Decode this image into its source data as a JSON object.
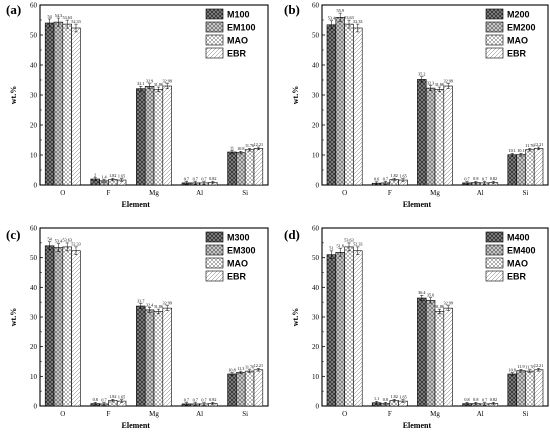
{
  "chart_data": [
    {
      "type": "bar",
      "panel_label": "(a)",
      "categories": [
        "O",
        "F",
        "Mg",
        "Al",
        "Si"
      ],
      "xlabel": "Element",
      "ylabel": "wt.%",
      "ylim": [
        0,
        60
      ],
      "yticks": [
        "0",
        "10",
        "20",
        "30",
        "40",
        "50",
        "60"
      ],
      "legend_position": "top-right",
      "series": [
        {
          "name": "M100",
          "values": [
            54,
            2,
            32.1,
            0.7,
            11
          ],
          "labels": [
            "54",
            "2",
            "32.1",
            "0.7",
            "11"
          ]
        },
        {
          "name": "EM100",
          "values": [
            54.3,
            1.4,
            32.9,
            0.7,
            10.8
          ],
          "labels": [
            "54.3",
            "1.4",
            "32.9",
            "0.7",
            "10.8"
          ]
        },
        {
          "name": "MAO",
          "values": [
            53.63,
            1.82,
            31.86,
            0.7,
            11.76
          ],
          "labels": [
            "53.63",
            "1.82",
            "31.86",
            "0.7",
            "11.76"
          ]
        },
        {
          "name": "EBR",
          "values": [
            52.33,
            1.65,
            32.99,
            0.82,
            12.21
          ],
          "labels": [
            "52.33",
            "1.65",
            "32.99",
            "0.82",
            "12.21"
          ]
        }
      ]
    },
    {
      "type": "bar",
      "panel_label": "(b)",
      "categories": [
        "O",
        "F",
        "Mg",
        "Al",
        "Si"
      ],
      "xlabel": "Element",
      "ylabel": "wt.%",
      "ylim": [
        0,
        60
      ],
      "yticks": [
        "0",
        "10",
        "20",
        "30",
        "40",
        "50",
        "60"
      ],
      "legend_position": "top-right",
      "series": [
        {
          "name": "M200",
          "values": [
            53.4,
            0.6,
            35.2,
            0.7,
            10.1
          ],
          "labels": [
            "53.4",
            "0.6",
            "35.2",
            "0.7",
            "10.1"
          ]
        },
        {
          "name": "EM200",
          "values": [
            55.9,
            0.7,
            32.3,
            0.8,
            10.1
          ],
          "labels": [
            "55.9",
            "0.7",
            "32.3",
            "0.8",
            "10.1"
          ]
        },
        {
          "name": "MAO",
          "values": [
            53.63,
            1.82,
            31.86,
            0.7,
            11.76
          ],
          "labels": [
            "53.63",
            "1.82",
            "31.86",
            "0.7",
            "11.76"
          ]
        },
        {
          "name": "EBR",
          "values": [
            52.33,
            1.65,
            32.99,
            0.82,
            12.21
          ],
          "labels": [
            "52.33",
            "1.65",
            "32.99",
            "0.82",
            "12.21"
          ]
        }
      ]
    },
    {
      "type": "bar",
      "panel_label": "(c)",
      "categories": [
        "O",
        "F",
        "Mg",
        "Al",
        "Si"
      ],
      "xlabel": "Element",
      "ylabel": "wt.%",
      "ylim": [
        0,
        60
      ],
      "yticks": [
        "0",
        "10",
        "20",
        "30",
        "40",
        "50",
        "60"
      ],
      "legend_position": "top-right",
      "series": [
        {
          "name": "M300",
          "values": [
            54,
            0.8,
            33.7,
            0.7,
            10.8
          ],
          "labels": [
            "54",
            "0.8",
            "33.7",
            "0.7",
            "10.8"
          ]
        },
        {
          "name": "EM300",
          "values": [
            53.4,
            0.7,
            32.4,
            0.7,
            11.3
          ],
          "labels": [
            "53.4",
            "0.7",
            "32.4",
            "0.7",
            "11.3"
          ]
        },
        {
          "name": "MAO",
          "values": [
            53.63,
            1.82,
            31.86,
            0.7,
            11.76
          ],
          "labels": [
            "53.63",
            "1.82",
            "31.86",
            "0.7",
            "11.76"
          ]
        },
        {
          "name": "EBR",
          "values": [
            52.33,
            1.65,
            32.99,
            0.82,
            12.21
          ],
          "labels": [
            "52.33",
            "1.65",
            "32.99",
            "0.82",
            "12.21"
          ]
        }
      ]
    },
    {
      "type": "bar",
      "panel_label": "(d)",
      "categories": [
        "O",
        "F",
        "Mg",
        "Al",
        "Si"
      ],
      "xlabel": "Element",
      "ylabel": "wt.%",
      "ylim": [
        0,
        60
      ],
      "yticks": [
        "0",
        "10",
        "20",
        "30",
        "40",
        "50",
        "60"
      ],
      "legend_position": "top-right",
      "series": [
        {
          "name": "M400",
          "values": [
            51,
            1.1,
            36.4,
            0.8,
            10.8
          ],
          "labels": [
            "51",
            "1.1",
            "36.4",
            "0.8",
            "10.8"
          ]
        },
        {
          "name": "EM400",
          "values": [
            51.8,
            0.8,
            35.6,
            0.8,
            11.9
          ],
          "labels": [
            "51.8",
            "0.8",
            "35.6",
            "0.8",
            "11.9"
          ]
        },
        {
          "name": "MAO",
          "values": [
            53.63,
            1.82,
            31.86,
            0.7,
            11.76
          ],
          "labels": [
            "53.63",
            "1.82",
            "31.86",
            "0.7",
            "11.76"
          ]
        },
        {
          "name": "EBR",
          "values": [
            52.33,
            1.65,
            32.99,
            0.82,
            12.21
          ],
          "labels": [
            "52.33",
            "1.65",
            "32.99",
            "0.82",
            "12.21"
          ]
        }
      ]
    }
  ]
}
